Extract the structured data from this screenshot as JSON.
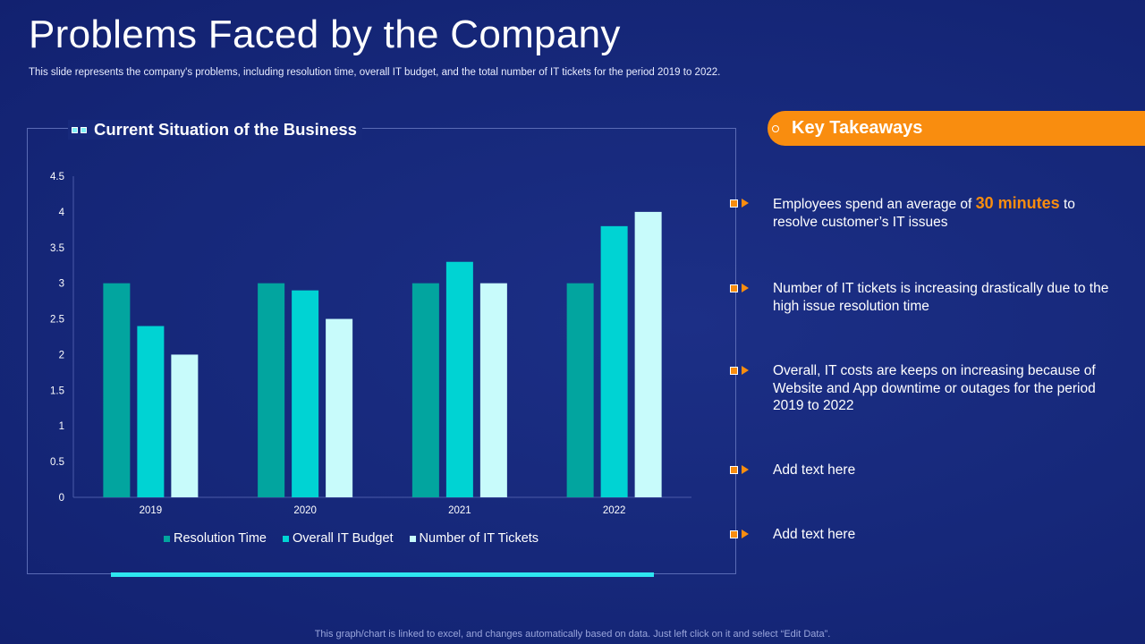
{
  "title": "Problems Faced by the Company",
  "subtitle": "This slide represents the company's problems, including resolution time, overall IT budget, and the total number of IT tickets for the period 2019 to 2022.",
  "chart_heading": "Current Situation of the Business",
  "chart_data": {
    "type": "bar",
    "title": "Current Situation of the Business",
    "categories": [
      "2019",
      "2020",
      "2021",
      "2022"
    ],
    "series": [
      {
        "name": "Resolution Time",
        "values": [
          3,
          3,
          3,
          3
        ],
        "color": "#02a59f"
      },
      {
        "name": "Overall IT Budget",
        "values": [
          2.4,
          2.9,
          3.3,
          3.8
        ],
        "color": "#00d3d3"
      },
      {
        "name": "Number of IT Tickets",
        "values": [
          2,
          2.5,
          3,
          4
        ],
        "color": "#c8fbfb"
      }
    ],
    "ylim": [
      0,
      4.5
    ],
    "yticks": [
      "0",
      "0.5",
      "1",
      "1.5",
      "2",
      "2.5",
      "3",
      "3.5",
      "4",
      "4.5"
    ],
    "grid": false,
    "legend": "bottom"
  },
  "takeaways_header": "Key Takeaways",
  "takeaways": [
    {
      "pre": "Employees spend an average of ",
      "highlight": "30 minutes",
      "post": " to resolve customer’s IT issues"
    },
    {
      "pre": "Number of IT tickets is increasing drastically due to the high issue resolution time",
      "highlight": "",
      "post": ""
    },
    {
      "pre": "Overall, IT costs are keeps on increasing because of Website and App downtime or outages for the period 2019 to 2022",
      "highlight": "",
      "post": ""
    },
    {
      "pre": "Add text here",
      "highlight": "",
      "post": ""
    },
    {
      "pre": "Add text here",
      "highlight": "",
      "post": ""
    }
  ],
  "footer": "This graph/chart is linked to excel, and changes automatically based on data. Just left click on it and select “Edit Data”.",
  "colors": {
    "accent": "#f98d0f",
    "background": "#16287a",
    "cyan": "#2ee6f0"
  }
}
